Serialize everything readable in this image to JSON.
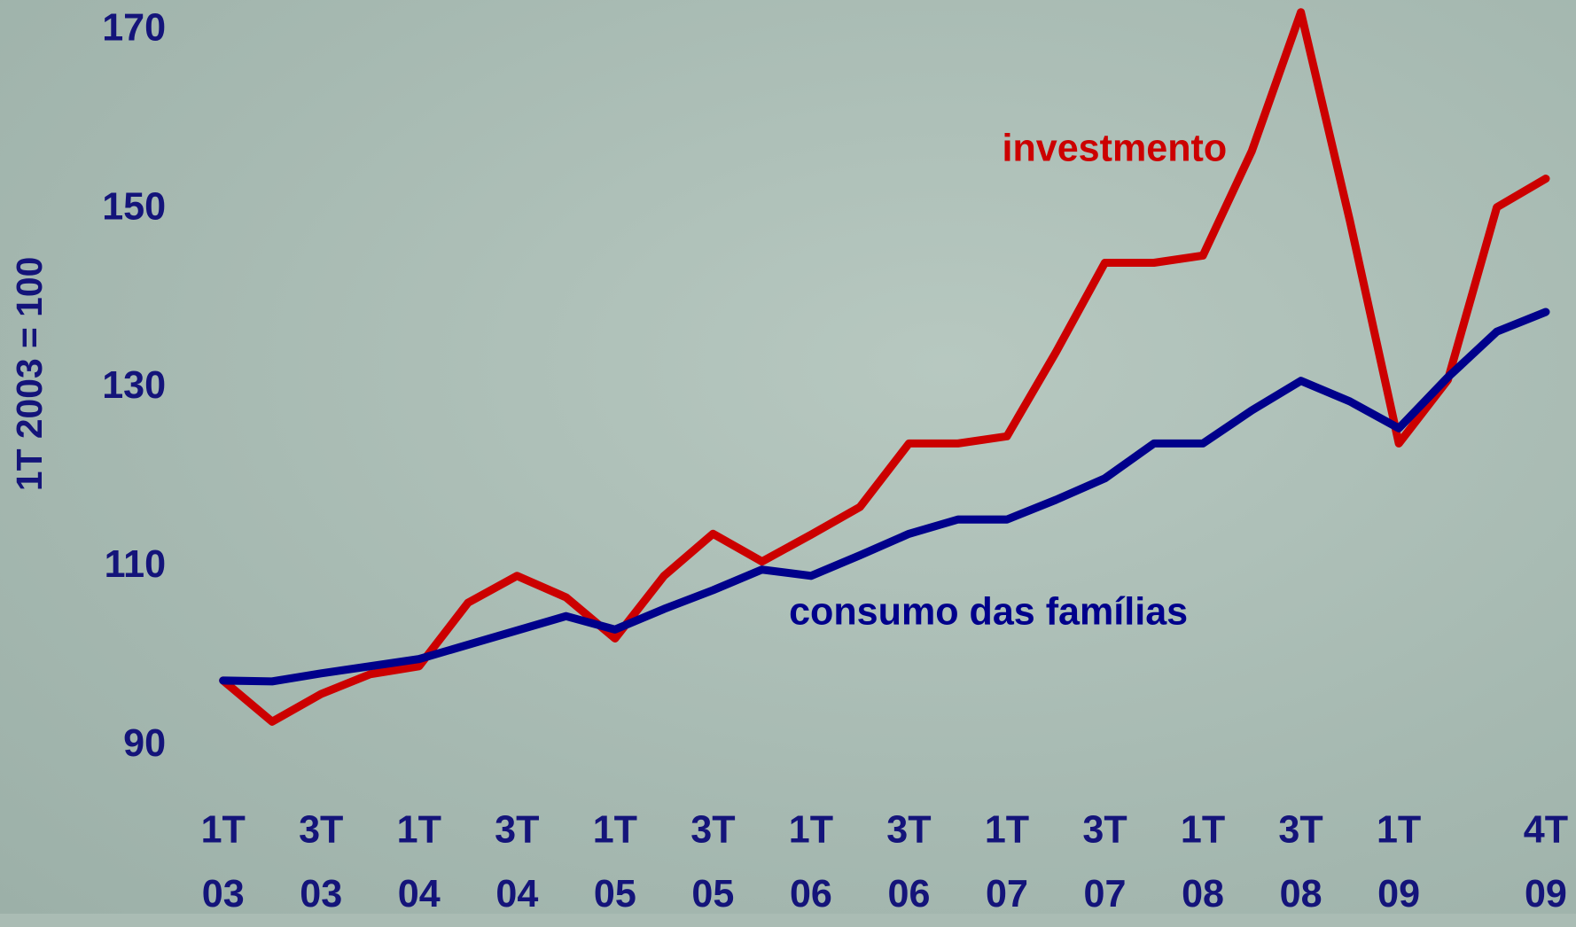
{
  "chart_data": {
    "type": "line",
    "y_label": "1T 2003 = 100",
    "categories": [
      "1T 03",
      null,
      "3T 03",
      null,
      "1T 04",
      null,
      "3T 04",
      null,
      "1T 05",
      null,
      "3T 05",
      null,
      "1T 06",
      null,
      "3T 06",
      null,
      "1T 07",
      null,
      "3T 07",
      null,
      "1T 08",
      null,
      "3T 08",
      null,
      "1T 09",
      null,
      null,
      "4T 09"
    ],
    "series": [
      {
        "name": "investmento",
        "color": "#cc0000",
        "values": [
          97.3,
          92.7,
          95.8,
          98.0,
          98.9,
          106.0,
          109.0,
          106.6,
          102.0,
          109.0,
          113.7,
          110.6,
          113.6,
          116.7,
          123.8,
          123.8,
          124.6,
          134.0,
          144.0,
          144.0,
          144.8,
          156.5,
          172.0,
          148.7,
          123.8,
          130.9,
          150.2,
          153.4
        ]
      },
      {
        "name": "consumo das famílias",
        "color": "#00008b",
        "values": [
          97.3,
          97.2,
          98.1,
          98.9,
          99.7,
          101.3,
          102.9,
          104.5,
          103.0,
          105.3,
          107.4,
          109.7,
          109.0,
          111.3,
          113.7,
          115.3,
          115.3,
          117.5,
          119.9,
          123.8,
          123.8,
          127.5,
          130.8,
          128.5,
          125.5,
          131.2,
          136.3,
          138.5
        ]
      }
    ],
    "ylim": [
      85,
      173
    ],
    "yticks": [
      90,
      110,
      130,
      150,
      170
    ]
  }
}
